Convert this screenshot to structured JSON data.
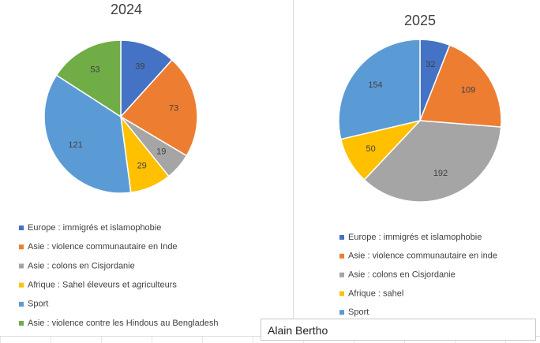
{
  "chart_data": [
    {
      "type": "pie",
      "title": "2024",
      "categories": [
        "Europe : immigrés et islamophobie",
        "Asie : violence communautaire en Inde",
        "Asie : colons en Cisjordanie",
        "Afrique : Sahel éleveurs et agriculteurs",
        "Sport",
        "Asie : violence contre les Hindous au Bengladesh"
      ],
      "values": [
        39,
        73,
        19,
        29,
        121,
        53
      ],
      "colors": [
        "#4472C4",
        "#ED7D31",
        "#A5A5A5",
        "#FFC000",
        "#5B9BD5",
        "#70AD47"
      ],
      "legend": "bottom"
    },
    {
      "type": "pie",
      "title": "2025",
      "categories": [
        "Europe : immigrés et islamophobie",
        "Asie : violence communautaire en inde",
        "Asie : colons en Cisjordanie",
        "Afrique : sahel",
        "Sport"
      ],
      "values": [
        32,
        109,
        192,
        50,
        154
      ],
      "colors": [
        "#4472C4",
        "#ED7D31",
        "#A5A5A5",
        "#FFC000",
        "#5B9BD5"
      ],
      "legend": "bottom"
    }
  ],
  "author_box": {
    "text": "Alain Bertho"
  }
}
